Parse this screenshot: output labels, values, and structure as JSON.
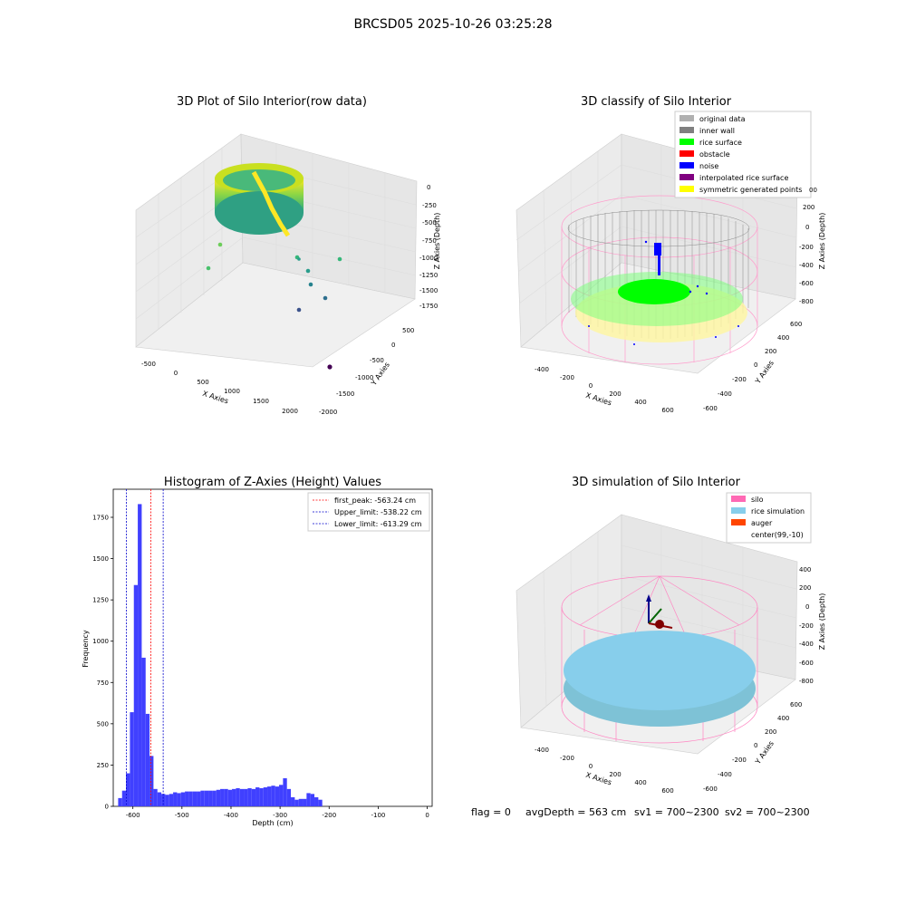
{
  "figure": {
    "suptitle": "BRCSD05 2025-10-26 03:25:28",
    "footer": {
      "flag": "flag = 0",
      "avg": "avgDepth = 563 cm",
      "sv1": "sv1 = 700~2300",
      "sv2": "sv2 = 700~2300"
    }
  },
  "chart_data": [
    {
      "id": "raw",
      "type": "scatter",
      "projection": "3d",
      "title": "3D Plot of Silo Interior(row data)",
      "xlabel": "X Axies",
      "ylabel": "Y Axies",
      "zlabel": "Z Axies (Depth)",
      "xticks": [
        "-500",
        "0",
        "500",
        "1000",
        "1500",
        "2000"
      ],
      "yticks": [
        "500",
        "0",
        "-500",
        "-1000",
        "-1500",
        "-2000"
      ],
      "zticks": [
        "0",
        "-250",
        "-500",
        "-750",
        "-1000",
        "-1250",
        "-1500",
        "-1750"
      ],
      "xlim": [
        -600,
        2200
      ],
      "ylim": [
        -2100,
        700
      ],
      "zlim": [
        -1800,
        100
      ],
      "colormap": [
        "#440154",
        "#31688e",
        "#35b779",
        "#fde725"
      ]
    },
    {
      "id": "classify",
      "type": "scatter",
      "projection": "3d",
      "title": "3D classify of Silo Interior",
      "xlabel": "X Axies",
      "ylabel": "Y Axies",
      "zlabel": "Z Axies (Depth)",
      "xticks": [
        "-400",
        "-200",
        "0",
        "200",
        "400",
        "600"
      ],
      "yticks": [
        "600",
        "400",
        "200",
        "0",
        "-200",
        "-400",
        "-600"
      ],
      "zticks": [
        "200",
        "0",
        "-200",
        "-400",
        "-600",
        "-800"
      ],
      "zticks_partial": [
        "00"
      ],
      "legend": [
        {
          "name": "original data",
          "color": "#b0b0b0"
        },
        {
          "name": "inner wall",
          "color": "#808080"
        },
        {
          "name": "rice surface",
          "color": "#00ff00"
        },
        {
          "name": "obstacle",
          "color": "#ff0000"
        },
        {
          "name": "noise",
          "color": "#0000ff"
        },
        {
          "name": "interpolated rice surface",
          "color": "#800080"
        },
        {
          "name": "symmetric generated points",
          "color": "#ffff00"
        }
      ]
    },
    {
      "id": "histogram",
      "type": "bar",
      "title": "Histogram of Z-Axies (Height) Values",
      "xlabel": "Depth (cm)",
      "ylabel": "Frequency",
      "xlim": [
        -640,
        10
      ],
      "ylim": [
        0,
        1920
      ],
      "xticks": [
        -600,
        -500,
        -400,
        -300,
        -200,
        -100,
        0
      ],
      "yticks": [
        0,
        250,
        500,
        750,
        1000,
        1250,
        1500,
        1750
      ],
      "bin_start": -630,
      "bin_width": 8,
      "values": [
        50,
        95,
        200,
        570,
        1340,
        1830,
        900,
        560,
        305,
        105,
        85,
        75,
        70,
        75,
        85,
        80,
        85,
        90,
        90,
        90,
        90,
        95,
        95,
        95,
        95,
        100,
        105,
        105,
        100,
        105,
        110,
        105,
        105,
        110,
        105,
        115,
        110,
        115,
        120,
        125,
        120,
        130,
        170,
        105,
        55,
        40,
        45,
        45,
        80,
        75,
        55,
        40
      ],
      "bar_color": "#4040ff",
      "vlines": [
        {
          "x": -563.24,
          "label": "first_peak: -563.24 cm",
          "color": "#ff0000"
        },
        {
          "x": -538.22,
          "label": "Upper_limit: -538.22 cm",
          "color": "#0000cc"
        },
        {
          "x": -613.29,
          "label": "Lower_limit: -613.29 cm",
          "color": "#0000cc"
        }
      ]
    },
    {
      "id": "simulation",
      "type": "scatter",
      "projection": "3d",
      "title": "3D simulation of Silo Interior",
      "xlabel": "X Axies",
      "ylabel": "Y Axies",
      "zlabel": "Z Axies (Depth)",
      "xticks": [
        "-400",
        "-200",
        "0",
        "200",
        "400",
        "600"
      ],
      "yticks": [
        "600",
        "400",
        "200",
        "0",
        "-200",
        "-400",
        "-600"
      ],
      "zticks": [
        "400",
        "200",
        "0",
        "-200",
        "-400",
        "-600",
        "-800"
      ],
      "legend": [
        {
          "name": "silo",
          "color": "#ff69b4"
        },
        {
          "name": "rice simulation",
          "color": "#87ceeb"
        },
        {
          "name": "auger",
          "color": "#ff4500"
        },
        {
          "name": "center(99,-10)",
          "color": "none"
        }
      ]
    }
  ]
}
